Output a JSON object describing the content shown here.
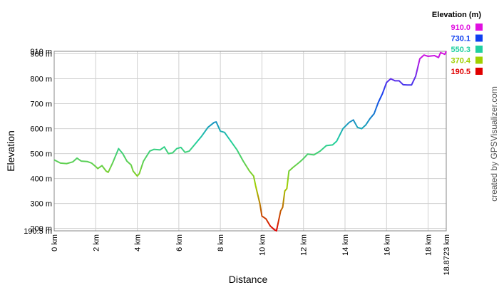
{
  "chart_data": {
    "type": "line",
    "xlabel": "Distance",
    "ylabel": "Elevation",
    "credit": "created by GPSVisualizer.com",
    "xlim": [
      0,
      18.8723
    ],
    "xticks": [
      {
        "value": 0,
        "label": "0 km"
      },
      {
        "value": 2,
        "label": "2 km"
      },
      {
        "value": 4,
        "label": "4 km"
      },
      {
        "value": 6,
        "label": "6 km"
      },
      {
        "value": 8,
        "label": "8 km"
      },
      {
        "value": 10,
        "label": "10 km"
      },
      {
        "value": 12,
        "label": "12 km"
      },
      {
        "value": 14,
        "label": "14 km"
      },
      {
        "value": 16,
        "label": "16 km"
      },
      {
        "value": 18,
        "label": "18 km"
      },
      {
        "value": 18.8723,
        "label": "18.8723 km"
      }
    ],
    "ylim": [
      190.5,
      910
    ],
    "yticks": [
      {
        "value": 190.5,
        "label": "190.5 m"
      },
      {
        "value": 200,
        "label": "200 m"
      },
      {
        "value": 300,
        "label": "300 m"
      },
      {
        "value": 400,
        "label": "400 m"
      },
      {
        "value": 500,
        "label": "500 m"
      },
      {
        "value": 600,
        "label": "600 m"
      },
      {
        "value": 700,
        "label": "700 m"
      },
      {
        "value": 800,
        "label": "800 m"
      },
      {
        "value": 900,
        "label": "900 m"
      },
      {
        "value": 910,
        "label": "910 m"
      }
    ],
    "grid": true,
    "legend": {
      "title": "Elevation (m)",
      "entries": [
        {
          "value": 910,
          "label": "910.0",
          "color": "#e010e0"
        },
        {
          "value": 730.1,
          "label": "730.1",
          "color": "#1040f0"
        },
        {
          "value": 550.3,
          "label": "550.3",
          "color": "#20d0a0"
        },
        {
          "value": 370.4,
          "label": "370.4",
          "color": "#a0d000"
        },
        {
          "value": 190.5,
          "label": "190.5",
          "color": "#e00000"
        }
      ]
    },
    "x": [
      0,
      0.3,
      0.6,
      0.9,
      1.1,
      1.3,
      1.6,
      1.8,
      2.0,
      2.1,
      2.3,
      2.5,
      2.6,
      2.8,
      3.0,
      3.1,
      3.3,
      3.5,
      3.7,
      3.8,
      4.0,
      4.1,
      4.3,
      4.6,
      4.8,
      5.1,
      5.3,
      5.5,
      5.7,
      5.9,
      6.1,
      6.3,
      6.5,
      6.8,
      7.1,
      7.4,
      7.7,
      7.8,
      8.0,
      8.2,
      8.5,
      8.8,
      9.1,
      9.4,
      9.6,
      9.7,
      9.9,
      10.0,
      10.2,
      10.4,
      10.6,
      10.7,
      10.8,
      10.9,
      11.0,
      11.1,
      11.2,
      11.3,
      11.5,
      11.8,
      12.0,
      12.2,
      12.5,
      12.8,
      13.1,
      13.4,
      13.6,
      13.9,
      14.2,
      14.4,
      14.6,
      14.8,
      15.0,
      15.2,
      15.4,
      15.6,
      15.8,
      16.0,
      16.2,
      16.4,
      16.6,
      16.8,
      17.0,
      17.2,
      17.4,
      17.6,
      17.8,
      18.0,
      18.3,
      18.5,
      18.6,
      18.8,
      18.8723
    ],
    "values": [
      475,
      462,
      460,
      467,
      482,
      470,
      468,
      462,
      448,
      440,
      452,
      430,
      425,
      460,
      500,
      520,
      500,
      470,
      455,
      430,
      410,
      420,
      470,
      510,
      517,
      515,
      527,
      500,
      503,
      520,
      525,
      505,
      510,
      540,
      570,
      605,
      625,
      627,
      590,
      585,
      550,
      515,
      470,
      430,
      410,
      370,
      300,
      250,
      238,
      210,
      195,
      190.5,
      230,
      270,
      285,
      350,
      360,
      430,
      445,
      465,
      480,
      498,
      495,
      510,
      532,
      535,
      550,
      600,
      625,
      635,
      605,
      600,
      615,
      640,
      660,
      705,
      740,
      785,
      800,
      792,
      792,
      776,
      775,
      775,
      810,
      880,
      895,
      890,
      893,
      885,
      905,
      898,
      910
    ]
  }
}
